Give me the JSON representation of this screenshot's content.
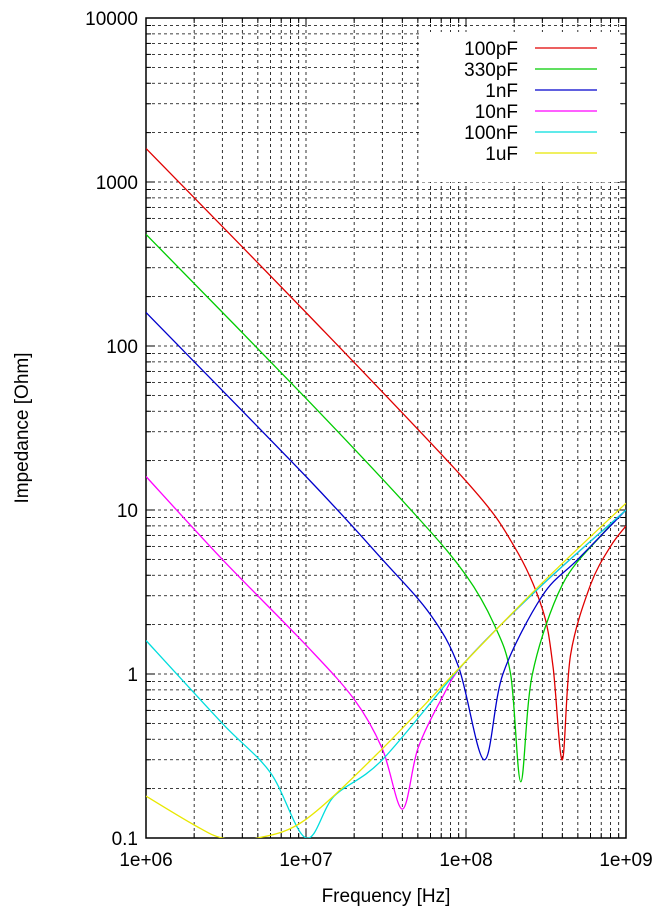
{
  "chart_data": {
    "type": "line",
    "xscale": "log",
    "yscale": "log",
    "xlim": [
      1000000,
      1000000000
    ],
    "ylim": [
      0.1,
      10000
    ],
    "xlabel": "Frequency [Hz]",
    "ylabel": "Impedance [Ohm]",
    "xticks": [
      {
        "value": 1000000,
        "label": "1e+06"
      },
      {
        "value": 10000000,
        "label": "1e+07"
      },
      {
        "value": 100000000,
        "label": "1e+08"
      },
      {
        "value": 1000000000,
        "label": "1e+09"
      }
    ],
    "yticks": [
      {
        "value": 0.1,
        "label": "0.1"
      },
      {
        "value": 1,
        "label": "1"
      },
      {
        "value": 10,
        "label": "10"
      },
      {
        "value": 100,
        "label": "100"
      },
      {
        "value": 1000,
        "label": "1000"
      },
      {
        "value": 10000,
        "label": "10000"
      }
    ],
    "grid": true,
    "legend_position": "top-right",
    "series": [
      {
        "name": "100pF",
        "color": "#e00000",
        "points": [
          [
            1000000,
            1600
          ],
          [
            10000000,
            160
          ],
          [
            100000000,
            15
          ],
          [
            200000000,
            6
          ],
          [
            300000000,
            2.5
          ],
          [
            350000000,
            1.1
          ],
          [
            400000000,
            0.3
          ],
          [
            450000000,
            1.3
          ],
          [
            600000000,
            3.5
          ],
          [
            800000000,
            6
          ],
          [
            1000000000,
            8
          ]
        ]
      },
      {
        "name": "330pF",
        "color": "#00cc00",
        "points": [
          [
            1000000,
            480
          ],
          [
            10000000,
            48
          ],
          [
            50000000,
            9
          ],
          [
            100000000,
            4
          ],
          [
            150000000,
            2
          ],
          [
            190000000,
            1
          ],
          [
            220000000,
            0.22
          ],
          [
            260000000,
            1
          ],
          [
            400000000,
            3.5
          ],
          [
            700000000,
            7
          ],
          [
            1000000000,
            10
          ]
        ]
      },
      {
        "name": "1nF",
        "color": "#0000cc",
        "points": [
          [
            1000000,
            160
          ],
          [
            10000000,
            16
          ],
          [
            30000000,
            5
          ],
          [
            60000000,
            2.3
          ],
          [
            90000000,
            1.1
          ],
          [
            130000000,
            0.3
          ],
          [
            170000000,
            1
          ],
          [
            300000000,
            3
          ],
          [
            500000000,
            5
          ],
          [
            1000000000,
            10
          ]
        ]
      },
      {
        "name": "10nF",
        "color": "#ff00ff",
        "points": [
          [
            1000000,
            16
          ],
          [
            3000000,
            5
          ],
          [
            10000000,
            1.5
          ],
          [
            20000000,
            0.7
          ],
          [
            30000000,
            0.35
          ],
          [
            40000000,
            0.15
          ],
          [
            50000000,
            0.35
          ],
          [
            70000000,
            0.7
          ],
          [
            100000000,
            1.2
          ],
          [
            300000000,
            3.5
          ],
          [
            1000000000,
            10
          ]
        ]
      },
      {
        "name": "100nF",
        "color": "#00dddd",
        "points": [
          [
            1000000,
            1.6
          ],
          [
            3000000,
            0.5
          ],
          [
            6000000,
            0.25
          ],
          [
            10000000,
            0.1
          ],
          [
            15000000,
            0.18
          ],
          [
            30000000,
            0.3
          ],
          [
            100000000,
            1.2
          ],
          [
            300000000,
            3.5
          ],
          [
            1000000000,
            10
          ]
        ]
      },
      {
        "name": "1uF",
        "color": "#e8e800",
        "points": [
          [
            1000000,
            0.18
          ],
          [
            2000000,
            0.12
          ],
          [
            3000000,
            0.1
          ],
          [
            5000000,
            0.1
          ],
          [
            10000000,
            0.13
          ],
          [
            30000000,
            0.35
          ],
          [
            100000000,
            1.2
          ],
          [
            300000000,
            3.6
          ],
          [
            1000000000,
            11
          ]
        ]
      }
    ]
  }
}
